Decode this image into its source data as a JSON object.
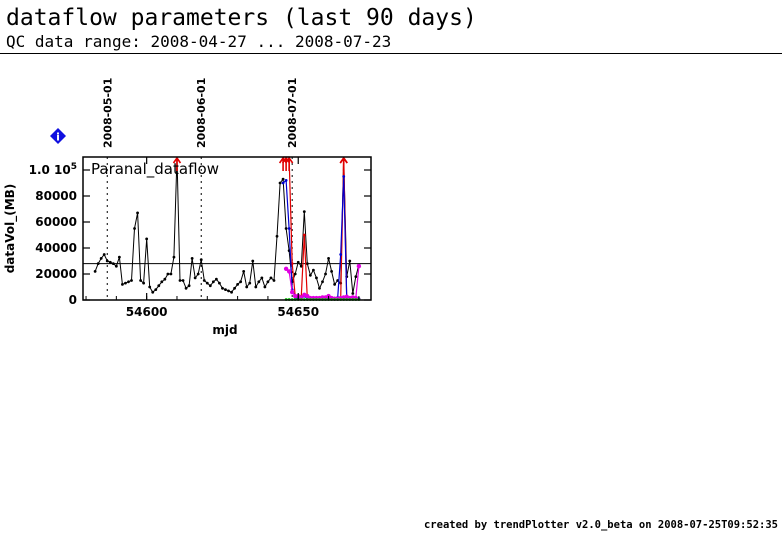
{
  "header": {
    "title": "dataflow parameters (last 90 days)",
    "subtitle": "QC data range: 2008-04-27 ... 2008-07-23"
  },
  "footer": {
    "text": "created by trendPlotter v2.0_beta on 2008-07-25T09:52:35"
  },
  "info_icon": {
    "glyph": "i",
    "icon": "info-icon",
    "color": "#1010e0"
  },
  "chart_data": {
    "type": "line",
    "panel_label": "Paranal_dataflow",
    "xlabel": "mjd",
    "ylabel": "dataVol_(MB)",
    "xlim": [
      54579,
      54674
    ],
    "ylim": [
      0,
      110000
    ],
    "x_ticks": [
      54600,
      54650
    ],
    "y_ticks": [
      {
        "value": 0,
        "label": "0"
      },
      {
        "value": 20000,
        "label": "20000"
      },
      {
        "value": 40000,
        "label": "40000"
      },
      {
        "value": 60000,
        "label": "60000"
      },
      {
        "value": 80000,
        "label": "80000"
      },
      {
        "value": 100000,
        "label": "1.0 10^5"
      }
    ],
    "reference_line": 28000,
    "date_markers": [
      {
        "x": 54587,
        "label": "2008-05-01"
      },
      {
        "x": 54618,
        "label": "2008-06-01"
      },
      {
        "x": 54648,
        "label": "2008-07-01"
      }
    ],
    "series": [
      {
        "color": "#000000",
        "x": [
          54583,
          54584,
          54585,
          54586,
          54587,
          54588,
          54589,
          54590,
          54591,
          54592,
          54593,
          54594,
          54595,
          54596,
          54597,
          54598,
          54599,
          54600,
          54601,
          54602,
          54603,
          54604,
          54605,
          54606,
          54607,
          54608,
          54609,
          54610,
          54611,
          54612,
          54613,
          54614,
          54615,
          54616,
          54617,
          54618,
          54619,
          54620,
          54621,
          54622,
          54623,
          54624,
          54625,
          54626,
          54627,
          54628,
          54629,
          54630,
          54631,
          54632,
          54633,
          54634,
          54635,
          54636,
          54637,
          54638,
          54639,
          54640,
          54641,
          54642,
          54643,
          54644,
          54645,
          54646,
          54647,
          54648,
          54649,
          54650,
          54651,
          54652,
          54653,
          54654,
          54655,
          54656,
          54657,
          54658,
          54659,
          54660,
          54661,
          54662,
          54663,
          54664,
          54665,
          54666,
          54667,
          54668,
          54669,
          54670
        ],
        "y": [
          22000,
          28000,
          32000,
          35000,
          30000,
          29000,
          28000,
          26000,
          33000,
          12000,
          13000,
          14000,
          15000,
          55000,
          67000,
          15000,
          13000,
          47000,
          10000,
          6000,
          8000,
          11000,
          14000,
          16000,
          20000,
          20000,
          33000,
          110000,
          15000,
          15000,
          9000,
          11000,
          32000,
          17000,
          20000,
          31000,
          15000,
          13000,
          11000,
          14000,
          16000,
          13000,
          9000,
          8000,
          7000,
          6000,
          9000,
          12000,
          14000,
          22000,
          10000,
          13000,
          30000,
          10000,
          14000,
          17000,
          10000,
          14000,
          17000,
          15000,
          49000,
          90000,
          93000,
          55000,
          38000,
          14000,
          20000,
          29000,
          26000,
          68000,
          28000,
          19000,
          23000,
          17000,
          9000,
          14000,
          20000,
          32000,
          22000,
          12000,
          15000,
          13000,
          110000,
          18000,
          30000,
          5000,
          18000,
          27000
        ]
      },
      {
        "color": "#e00000",
        "x": [
          54645,
          54646,
          54647,
          54648,
          54649,
          54650,
          54651,
          54652,
          54653,
          54654,
          54655,
          54656,
          54657,
          54658,
          54659,
          54660,
          54661,
          54662,
          54663,
          54664,
          54665,
          54666,
          54667,
          54668,
          54669,
          54670
        ],
        "y": [
          110000,
          110000,
          110000,
          28000,
          3000,
          1000,
          3000,
          50000,
          1500,
          1000,
          1000,
          1000,
          1000,
          1000,
          1000,
          1000,
          1000,
          1000,
          1000,
          1000,
          110000,
          1500,
          1000,
          1000,
          1000,
          1000
        ]
      },
      {
        "color": "#0000d0",
        "x": [
          54645,
          54646,
          54647,
          54648,
          54649,
          54650,
          54651,
          54652,
          54653,
          54654,
          54655,
          54656,
          54657,
          54658,
          54659,
          54660,
          54661,
          54662,
          54663,
          54664,
          54665,
          54666,
          54667,
          54668,
          54669,
          54670
        ],
        "y": [
          90000,
          92000,
          55000,
          8000,
          2000,
          1000,
          2000,
          3000,
          1000,
          1000,
          1000,
          1000,
          1000,
          1000,
          1000,
          1000,
          1000,
          1000,
          2000,
          35000,
          95000,
          2000,
          1000,
          1000,
          1000,
          1000
        ]
      },
      {
        "color": "#e000e0",
        "x": [
          54646,
          54647,
          54648,
          54649,
          54650,
          54651,
          54652,
          54653,
          54654,
          54655,
          54656,
          54657,
          54658,
          54659,
          54660,
          54661,
          54662,
          54663,
          54664,
          54665,
          54666,
          54667,
          54668,
          54669,
          54670
        ],
        "y": [
          24000,
          22000,
          6000,
          3000,
          3000,
          2000,
          4000,
          3000,
          1500,
          1500,
          1500,
          1500,
          2000,
          2000,
          3000,
          1500,
          1000,
          1000,
          1500,
          2000,
          2500,
          1500,
          2000,
          1500,
          26000
        ]
      },
      {
        "color": "#00c000",
        "x": [
          54646,
          54647,
          54648,
          54649,
          54650,
          54651,
          54652,
          54653,
          54654,
          54655,
          54656,
          54657,
          54658,
          54659,
          54660,
          54661,
          54662,
          54663,
          54664,
          54665,
          54666,
          54667,
          54668,
          54669,
          54670
        ],
        "y": [
          400,
          400,
          400,
          400,
          400,
          400,
          400,
          400,
          400,
          400,
          400,
          400,
          400,
          400,
          400,
          400,
          400,
          400,
          400,
          400,
          400,
          400,
          400,
          400,
          400
        ]
      }
    ]
  }
}
